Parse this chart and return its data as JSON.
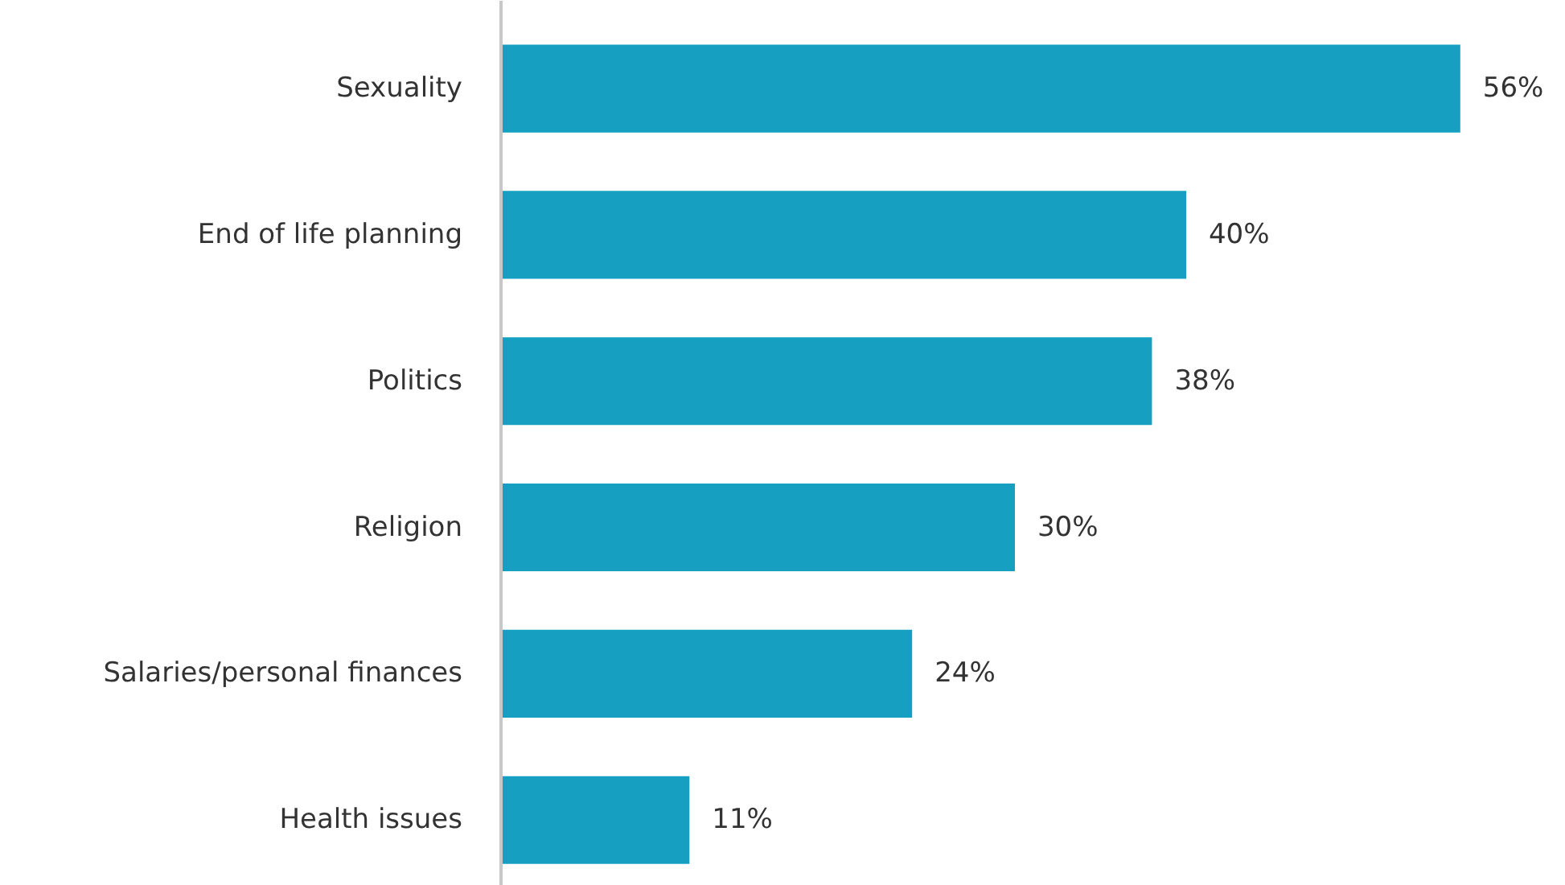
{
  "chart_data": {
    "type": "bar",
    "orientation": "horizontal",
    "categories": [
      "Sexuality",
      "End of life planning",
      "Politics",
      "Religion",
      "Salaries/personal finances",
      "Health issues"
    ],
    "values": [
      56,
      40,
      38,
      30,
      24,
      11
    ],
    "value_labels": [
      "56%",
      "40%",
      "38%",
      "30%",
      "24%",
      "11%"
    ],
    "color": "#169fc1"
  }
}
